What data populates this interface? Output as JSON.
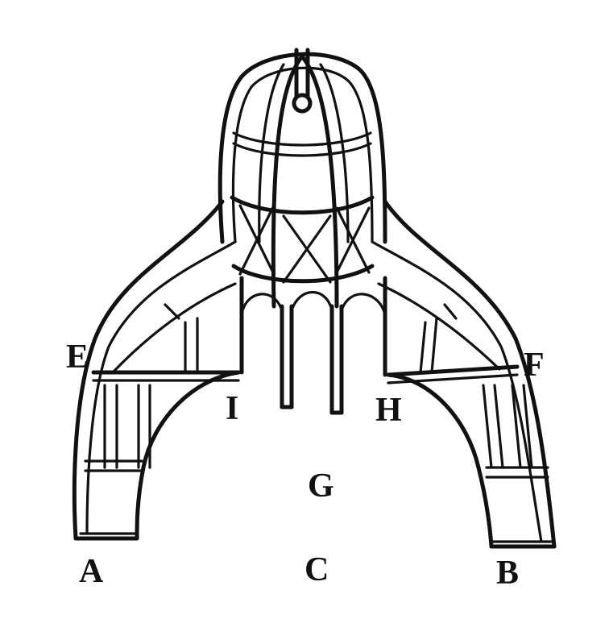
{
  "labels": {
    "A": "A",
    "B": "B",
    "C": "C",
    "E": "E",
    "F": "F",
    "G": "G",
    "H": "H",
    "I": "I"
  },
  "colors": {
    "ink": "#111111",
    "paper": "#ffffff"
  }
}
